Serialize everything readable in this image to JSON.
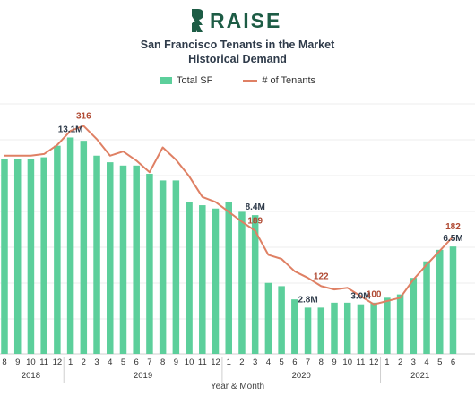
{
  "brand": {
    "name": "RAISE",
    "logo_icon": "raise-logo-icon",
    "color": "#1d5c45"
  },
  "title_line1": "San Francisco Tenants in the Market",
  "title_line2": "Historical Demand",
  "legend": {
    "bar_label": "Total SF",
    "line_label": "# of Tenants",
    "bar_color": "#5ccf9b",
    "line_color": "#df8064"
  },
  "xaxis_title": "Year & Month",
  "chart_data": {
    "type": "bar",
    "months": [
      "8",
      "9",
      "10",
      "11",
      "12",
      "1",
      "2",
      "3",
      "4",
      "5",
      "6",
      "7",
      "8",
      "9",
      "10",
      "11",
      "12",
      "1",
      "2",
      "3",
      "4",
      "5",
      "6",
      "7",
      "8",
      "9",
      "10",
      "11",
      "12",
      "1",
      "2",
      "3",
      "4",
      "5",
      "6"
    ],
    "years": [
      {
        "label": "2018",
        "start": 0,
        "end": 4
      },
      {
        "label": "2019",
        "start": 5,
        "end": 16
      },
      {
        "label": "2020",
        "start": 17,
        "end": 28
      },
      {
        "label": "2021",
        "start": 29,
        "end": 34
      }
    ],
    "series": [
      {
        "name": "Total SF",
        "axis": "left",
        "unit": "M SF",
        "values": [
          11.8,
          11.8,
          11.8,
          11.9,
          12.6,
          13.1,
          12.9,
          12.0,
          11.6,
          11.4,
          11.4,
          10.9,
          10.5,
          10.5,
          9.2,
          9.0,
          8.8,
          9.2,
          8.6,
          8.4,
          4.3,
          4.1,
          3.3,
          2.8,
          2.8,
          3.1,
          3.1,
          3.0,
          3.1,
          3.4,
          3.6,
          4.6,
          5.6,
          6.3,
          6.5
        ]
      },
      {
        "name": "# of Tenants",
        "axis": "right",
        "values": [
          280,
          280,
          280,
          282,
          293,
          310,
          316,
          300,
          280,
          285,
          274,
          260,
          290,
          275,
          255,
          230,
          224,
          212,
          200,
          189,
          160,
          155,
          140,
          132,
          122,
          118,
          120,
          110,
          100,
          104,
          108,
          130,
          148,
          165,
          182
        ]
      }
    ],
    "data_labels": [
      {
        "series": "Total SF",
        "index": 5,
        "text": "13.1M"
      },
      {
        "series": "Total SF",
        "index": 19,
        "text": "8.4M"
      },
      {
        "series": "Total SF",
        "index": 23,
        "text": "2.8M"
      },
      {
        "series": "Total SF",
        "index": 27,
        "text": "3.0M"
      },
      {
        "series": "Total SF",
        "index": 34,
        "text": "6.5M"
      },
      {
        "series": "# of Tenants",
        "index": 6,
        "text": "316"
      },
      {
        "series": "# of Tenants",
        "index": 19,
        "text": "189"
      },
      {
        "series": "# of Tenants",
        "index": 24,
        "text": "122"
      },
      {
        "series": "# of Tenants",
        "index": 28,
        "text": "100"
      },
      {
        "series": "# of Tenants",
        "index": 34,
        "text": "182"
      }
    ],
    "ylim_left": [
      0,
      16
    ],
    "ylim_right": [
      40,
      360
    ],
    "grid": true
  }
}
